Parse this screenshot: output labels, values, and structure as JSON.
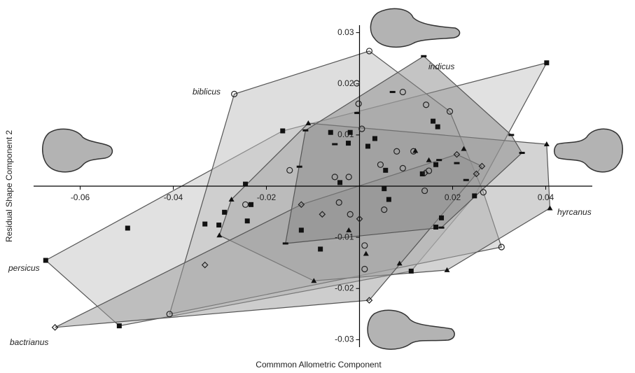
{
  "chart_data": {
    "type": "scatter",
    "xlabel": "Commmon Allometric Component",
    "ylabel": "Residual Shape Component 2",
    "xlim": [
      -0.07,
      0.05
    ],
    "ylim": [
      -0.032,
      0.032
    ],
    "xticks": [
      -0.06,
      -0.04,
      -0.02,
      0.02,
      0.04
    ],
    "yticks": [
      0.03,
      0.02,
      0.01,
      -0.01,
      -0.02,
      -0.03
    ],
    "series": [
      {
        "name": "persicus",
        "marker": "square",
        "color": "#c4c4c4",
        "x": [
          -0.0674,
          -0.0516,
          -0.0498,
          -0.0332,
          -0.0302,
          -0.029,
          -0.0245,
          -0.0241,
          -0.0233,
          -0.0165,
          -0.0125,
          -0.0084,
          -0.0062,
          -0.0042,
          -0.0024,
          -0.002,
          0.0018,
          0.0033,
          0.0053,
          0.0056,
          0.0063,
          0.0111,
          0.0135,
          0.0158,
          0.0168,
          0.0164,
          0.0176,
          0.0164,
          0.0247,
          0.0402
        ],
        "y": [
          -0.0145,
          -0.0273,
          -0.0082,
          -0.0074,
          -0.0076,
          -0.0051,
          0.0004,
          -0.0068,
          -0.0036,
          0.0108,
          -0.0086,
          -0.0123,
          0.0105,
          0.0007,
          0.0084,
          0.0105,
          0.0078,
          0.0093,
          -0.0005,
          0.0031,
          -0.0026,
          -0.0166,
          0.0024,
          0.0127,
          0.0116,
          0.0042,
          -0.0062,
          -0.008,
          -0.0019,
          0.0241
        ]
      },
      {
        "name": "biblicus",
        "marker": "circle",
        "color": "#bdbdbd",
        "x": [
          -0.0269,
          0.0021,
          -0.0006,
          -0.0002,
          0.0005,
          0.0093,
          0.0143,
          0.0194,
          -0.015,
          -0.0245,
          -0.0053,
          -0.0023,
          0.0045,
          0.008,
          0.0116,
          0.0093,
          0.0149,
          0.014,
          0.0266,
          0.0305,
          -0.0044,
          -0.002,
          0.0053,
          0.0011,
          0.0011,
          -0.0408
        ],
        "y": [
          0.018,
          0.0264,
          0.0201,
          0.0161,
          0.0112,
          0.0184,
          0.0159,
          0.0146,
          0.0031,
          -0.0036,
          0.0018,
          0.0018,
          0.0042,
          0.0068,
          0.0068,
          0.0035,
          0.003,
          -0.0009,
          -0.0012,
          -0.0119,
          -0.0032,
          -0.0055,
          -0.0046,
          -0.0116,
          -0.0162,
          -0.025
        ]
      },
      {
        "name": "hyrcanus",
        "marker": "triangle",
        "color": "#a8a8a8",
        "x": [
          -0.011,
          -0.0275,
          -0.0301,
          -0.0098,
          0.0086,
          0.0188,
          0.0409,
          0.0402,
          0.012,
          0.0224,
          0.0149,
          -0.0023,
          0.0014
        ],
        "y": [
          0.0123,
          -0.0026,
          -0.0096,
          -0.0185,
          -0.0151,
          -0.0164,
          -0.0043,
          0.0082,
          0.0069,
          0.0073,
          0.0051,
          -0.0086,
          -0.0132
        ]
      },
      {
        "name": "bactrianus",
        "marker": "diamond",
        "color": "#9c9c9c",
        "x": [
          -0.0654,
          -0.0332,
          -0.0125,
          -0.008,
          0.0,
          0.0021,
          0.0141,
          0.0209,
          0.0263,
          0.0251
        ],
        "y": [
          -0.0276,
          -0.0154,
          -0.0036,
          -0.0055,
          -0.0064,
          -0.0223,
          0.0026,
          0.0062,
          0.0039,
          0.0024
        ]
      },
      {
        "name": "indicus",
        "marker": "dash",
        "color": "#8a8a8a",
        "x": [
          0.0138,
          -0.0116,
          -0.0129,
          -0.0159,
          -0.0005,
          0.0071,
          0.0209,
          0.0229,
          0.0326,
          0.0349,
          0.0176,
          -0.0053,
          0.0171
        ],
        "y": [
          0.0254,
          0.0109,
          0.0038,
          -0.0112,
          0.0143,
          0.0184,
          0.0045,
          0.0012,
          0.01,
          0.0065,
          -0.0081,
          0.0082,
          0.0051
        ]
      }
    ]
  }
}
